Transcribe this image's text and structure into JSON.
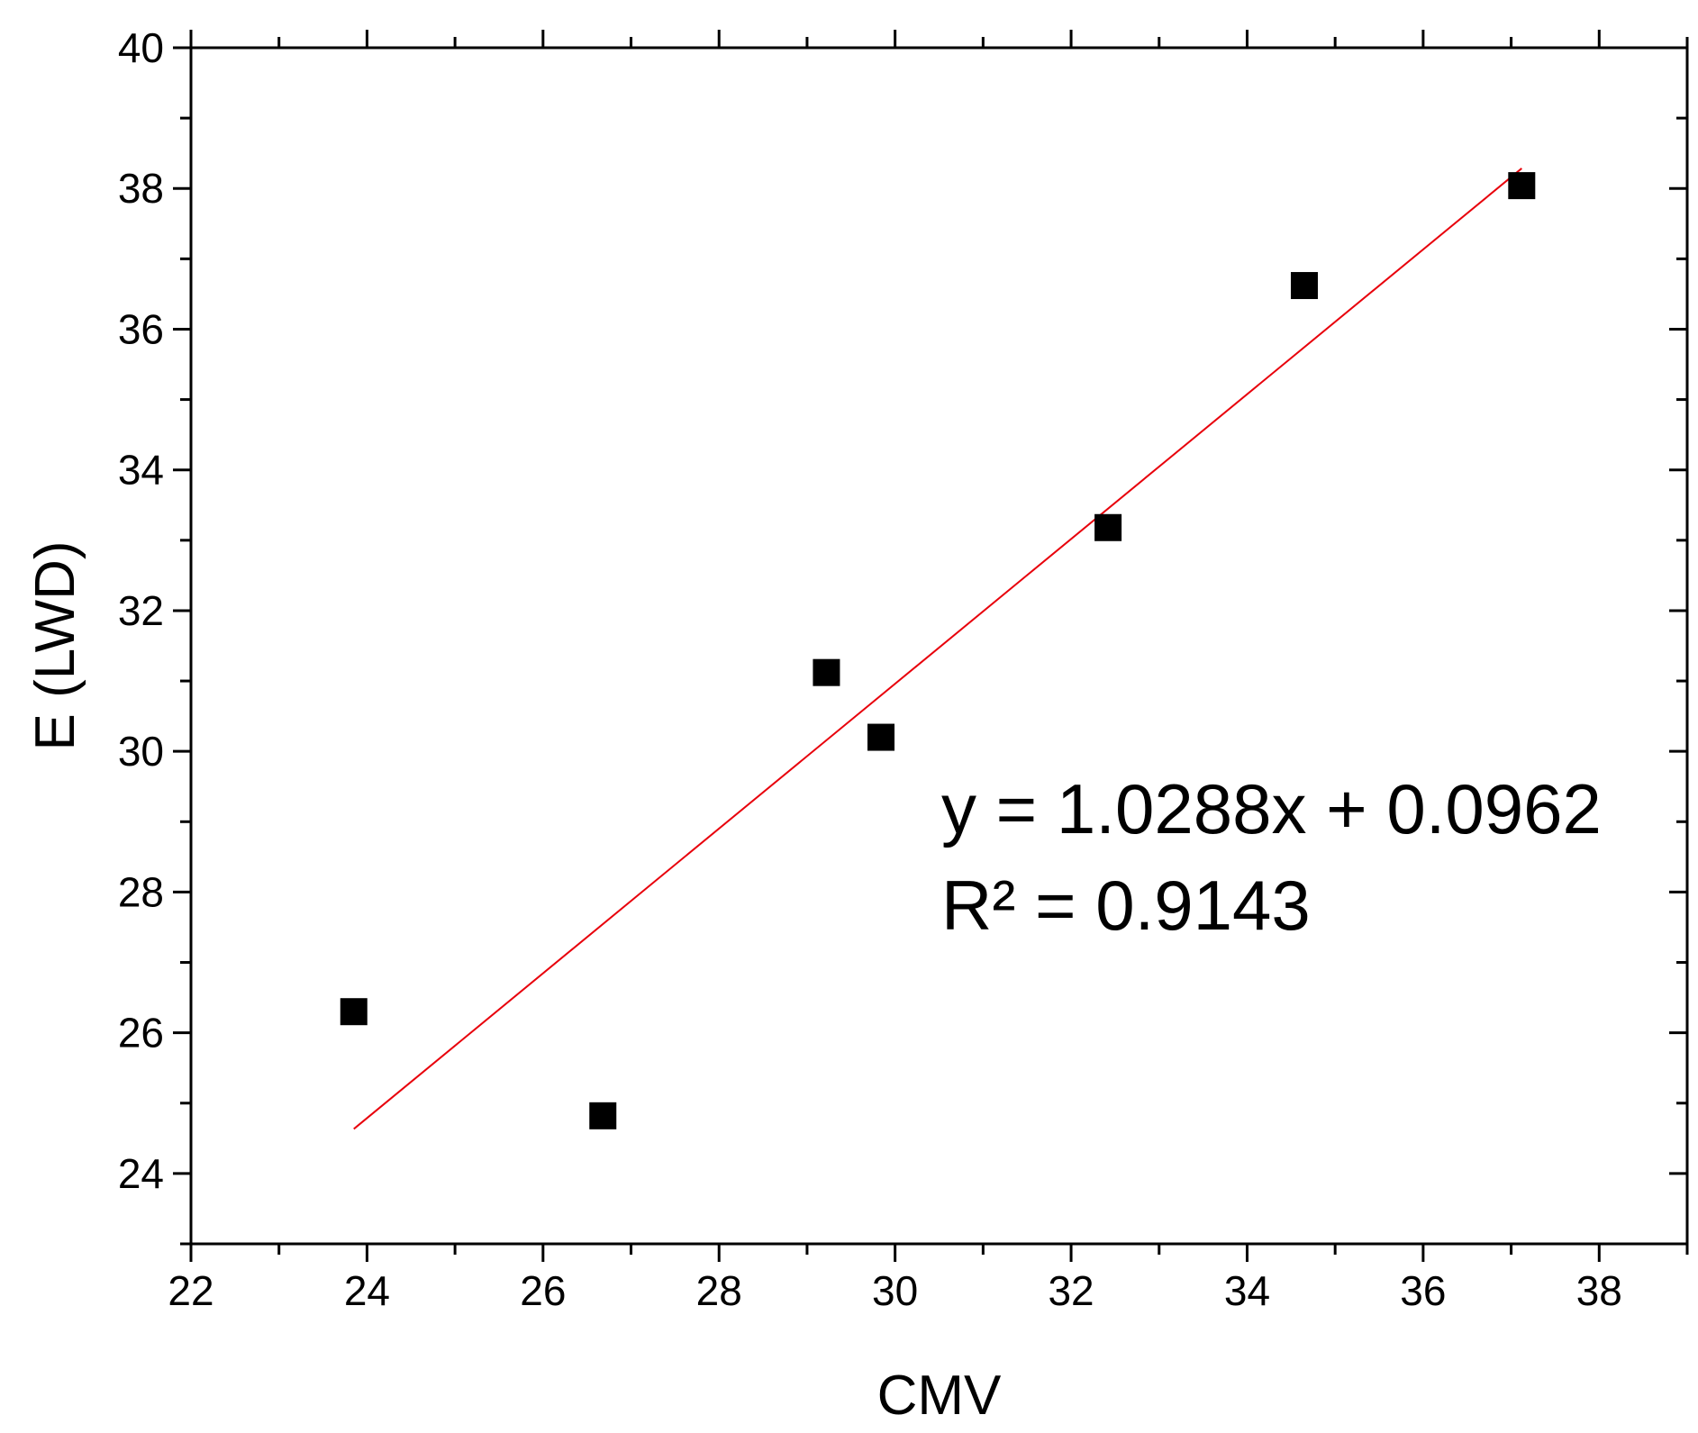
{
  "chart_data": {
    "type": "scatter",
    "xlabel": "CMV",
    "ylabel": "E (LWD)",
    "xlim": [
      22,
      39
    ],
    "ylim": [
      23,
      40
    ],
    "x_ticks": [
      22,
      24,
      26,
      28,
      30,
      32,
      34,
      36,
      38
    ],
    "y_ticks": [
      24,
      26,
      28,
      30,
      32,
      34,
      36,
      38,
      40
    ],
    "x_tick_labels": [
      "22",
      "24",
      "26",
      "28",
      "30",
      "32",
      "34",
      "36",
      "38"
    ],
    "y_tick_labels": [
      "24",
      "26",
      "28",
      "30",
      "32",
      "34",
      "36",
      "38",
      "40"
    ],
    "grid": false,
    "marker": "square",
    "marker_color": "#000000",
    "trendline_color": "#e8000b",
    "points": [
      {
        "x": 23.85,
        "y": 26.3
      },
      {
        "x": 26.68,
        "y": 24.82
      },
      {
        "x": 29.22,
        "y": 31.12
      },
      {
        "x": 29.84,
        "y": 30.2
      },
      {
        "x": 32.42,
        "y": 33.18
      },
      {
        "x": 34.65,
        "y": 36.62
      },
      {
        "x": 37.12,
        "y": 38.04
      }
    ],
    "trendline": {
      "type": "linear",
      "slope": 1.0288,
      "intercept": 0.0962,
      "x_range": [
        23.85,
        37.12
      ]
    },
    "annotations": [
      {
        "text": "y = 1.0288x + 0.0962"
      },
      {
        "text": "R² = 0.9143"
      }
    ]
  }
}
